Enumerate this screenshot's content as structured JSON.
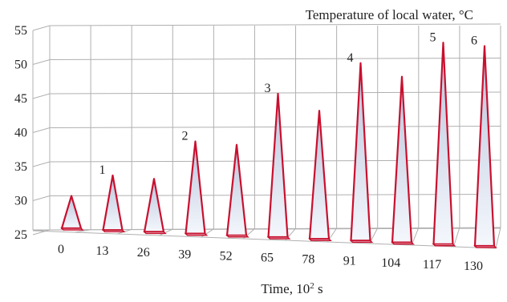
{
  "chart_data": {
    "type": "bar",
    "style": "3d-pyramid",
    "title": "Temperature of local water, °C",
    "xlabel_prefix": "Time, 10",
    "xlabel_exp": "2",
    "xlabel_suffix": " s",
    "ylabel": "",
    "ylim": [
      25,
      55
    ],
    "yticks": [
      "25",
      "30",
      "35",
      "40",
      "45",
      "50",
      "55"
    ],
    "categories": [
      "0",
      "13",
      "26",
      "39",
      "52",
      "65",
      "78",
      "91",
      "104",
      "117",
      "130"
    ],
    "values": [
      30,
      33,
      32.5,
      38,
      37.5,
      45,
      42.5,
      49.5,
      47.5,
      52.5,
      52
    ],
    "annotations": [
      {
        "index": 1,
        "text": "1"
      },
      {
        "index": 3,
        "text": "2"
      },
      {
        "index": 5,
        "text": "3"
      },
      {
        "index": 7,
        "text": "4"
      },
      {
        "index": 9,
        "text": "5"
      },
      {
        "index": 10,
        "text": "6"
      }
    ],
    "grid": true,
    "colors": {
      "edge": "#c8102e",
      "face_light": "#f4f7fc",
      "face_mid": "#c9d3e8",
      "side_dark": "#8c95ad",
      "grid": "#b0b0b0"
    }
  }
}
